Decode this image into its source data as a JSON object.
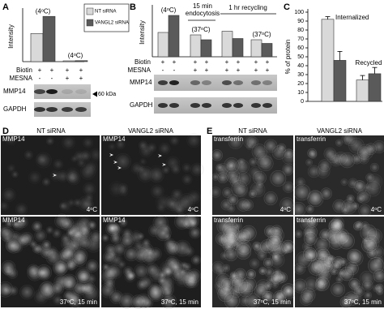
{
  "panel_letters": [
    "A",
    "B",
    "C",
    "D",
    "E"
  ],
  "chart_data": [
    {
      "type": "bar",
      "ylabel": "Intensity",
      "ylim": [
        0,
        25
      ],
      "categories": [
        null,
        null
      ],
      "annotations": [
        "(4ᵒC)",
        "(4ᵒC)"
      ],
      "legend": "upper right",
      "series": [
        {
          "name": "NT siRNA",
          "color": "#d9d9d9",
          "values": [
            14,
            0.4
          ]
        },
        {
          "name": "VANGL2 siRNA",
          "color": "#5a5a5a",
          "values": [
            22.5,
            0.5
          ]
        }
      ]
    },
    {
      "type": "bar",
      "ylabel": "Intensity",
      "ylim": [
        0,
        20
      ],
      "categories": [
        null,
        null,
        null,
        null
      ],
      "annotations": [
        "(4ᵒC)",
        "(37ᵒC)",
        null,
        "(37ᵒC)"
      ],
      "group_labels": [
        "15 min endocytosis",
        "1 hr recycling"
      ],
      "series": [
        {
          "color": "#d9d9d9",
          "values": [
            10,
            9,
            10.5,
            7
          ]
        },
        {
          "color": "#5a5a5a",
          "values": [
            17,
            7,
            7.5,
            5.5
          ]
        }
      ]
    },
    {
      "type": "bar",
      "ylabel": "% of protein",
      "ylim": [
        0,
        100
      ],
      "yticks": [
        0,
        10,
        20,
        30,
        40,
        50,
        60,
        70,
        80,
        90,
        100
      ],
      "categories": [
        "Internalized",
        "Recycled"
      ],
      "series": [
        {
          "color": "#d9d9d9",
          "values": [
            92,
            24
          ],
          "errors": [
            3,
            5
          ]
        },
        {
          "color": "#5a5a5a",
          "values": [
            46,
            31
          ],
          "errors": [
            10,
            7
          ]
        }
      ]
    }
  ],
  "blots": [
    {
      "biotin_label": "Biotin",
      "mesna_label": "MESNA",
      "biotin": [
        "+",
        "+",
        "+",
        "+"
      ],
      "mesna": [
        "-",
        "-",
        "+",
        "+"
      ],
      "rows": [
        "MMP14",
        "GAPDH"
      ],
      "marker": "60 kDa"
    },
    {
      "biotin_label": "Biotin",
      "mesna_label": "MESNA",
      "biotin": [
        "+",
        "+",
        "+",
        "+",
        "+",
        "+",
        "+",
        "+"
      ],
      "mesna": [
        "-",
        "-",
        "+",
        "+",
        "+",
        "+",
        "+",
        "+"
      ],
      "rows": [
        "MMP14",
        "GAPDH"
      ]
    }
  ],
  "images": [
    {
      "columns": [
        "NT siRNA",
        "VANGL2 siRNA"
      ],
      "panels": [
        {
          "stain": "MMP14",
          "condition": "4ᵒC"
        },
        {
          "stain": "MMP14",
          "condition": "4ᵒC"
        },
        {
          "stain": "MMP14",
          "condition": "37ᵒC, 15 min"
        },
        {
          "stain": "MMP14",
          "condition": "37ᵒC, 15 min"
        }
      ]
    },
    {
      "columns": [
        "NT siRNA",
        "VANGL2 siRNA"
      ],
      "panels": [
        {
          "stain": "transferrin",
          "condition": "4ᵒC"
        },
        {
          "stain": "transferrin",
          "condition": "4ᵒC"
        },
        {
          "stain": "transferrin",
          "condition": "37ᵒC, 15 min"
        },
        {
          "stain": "transferrin",
          "condition": "37ᵒC, 15 min"
        }
      ]
    }
  ]
}
